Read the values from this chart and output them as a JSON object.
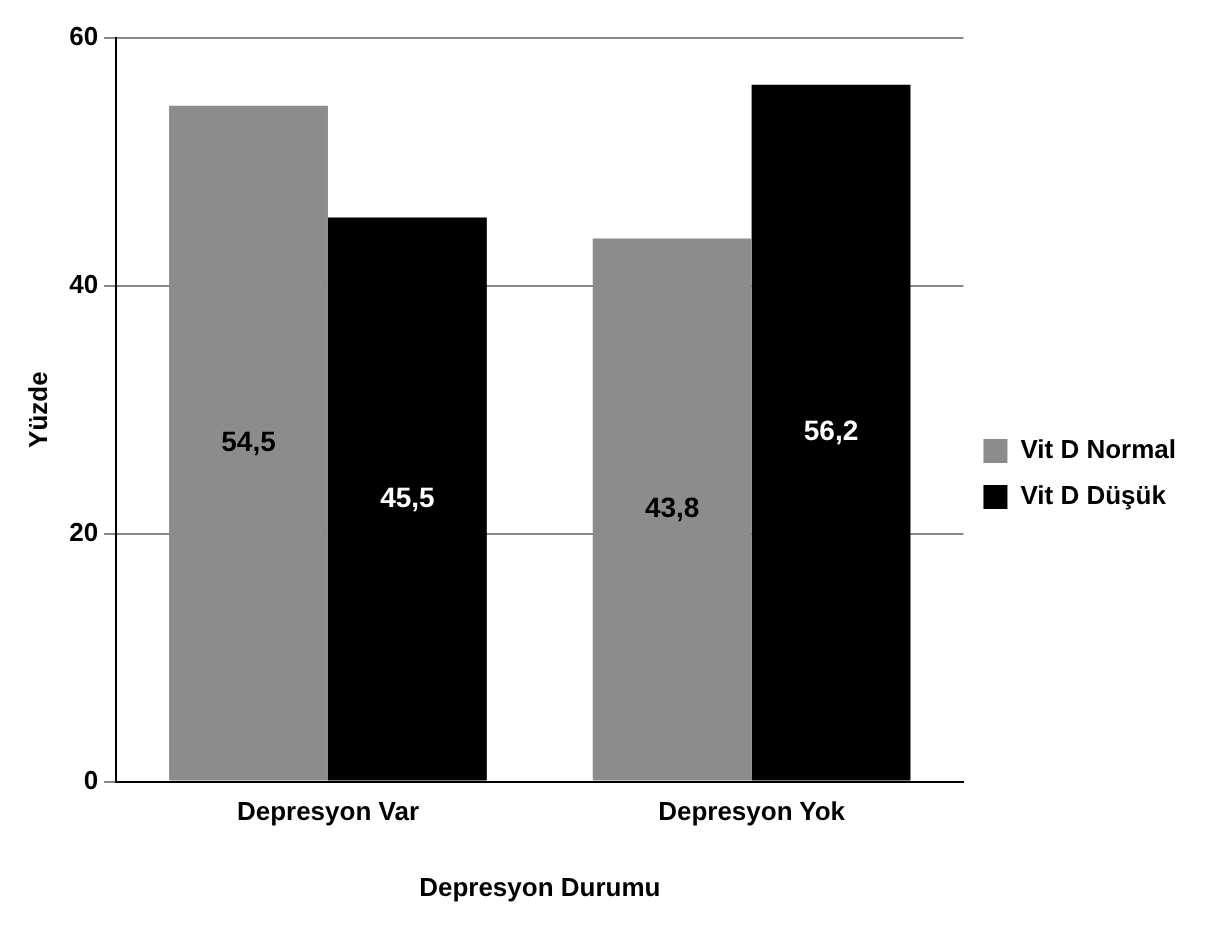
{
  "chart_data": {
    "type": "bar",
    "xlabel": "Depresyon Durumu",
    "ylabel": "Yüzde",
    "categories": [
      "Depresyon Var",
      "Depresyon Yok"
    ],
    "series": [
      {
        "name": "Vit D Normal",
        "color": "#8c8c8c",
        "values": [
          54.5,
          43.8
        ],
        "value_labels": [
          "54,5",
          "43,8"
        ]
      },
      {
        "name": "Vit D Düşük",
        "color": "#000000",
        "values": [
          45.5,
          56.2
        ],
        "value_labels": [
          "45,5",
          "56,2"
        ]
      }
    ],
    "ylim": [
      0,
      60
    ],
    "yticks": [
      0,
      20,
      40,
      60
    ],
    "grid": "y",
    "legend": "right"
  }
}
